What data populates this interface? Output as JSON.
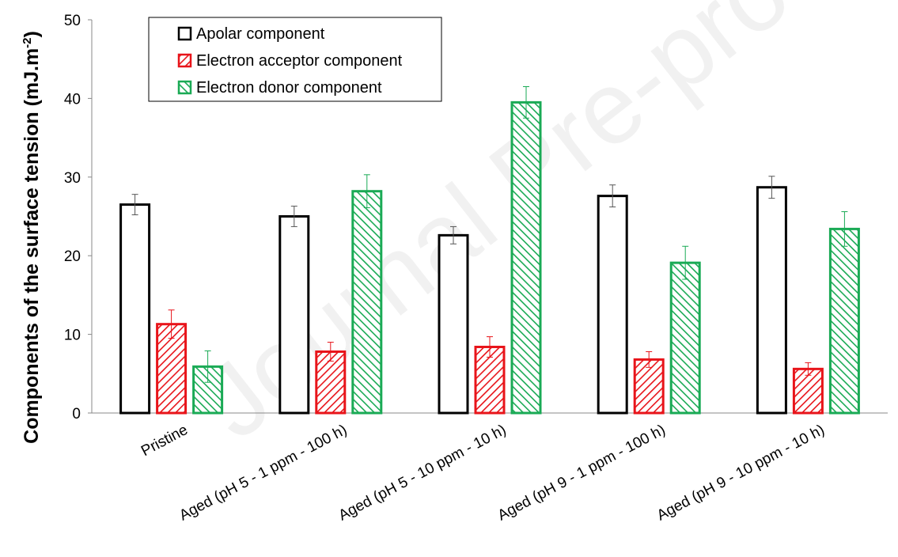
{
  "watermark": "Journal Pre-proof",
  "chart_data": {
    "type": "bar",
    "ylabel": "Components of the surface tension (mJ.m",
    "ylabel_sup": "-2",
    "ylabel_close": ")",
    "ylim": [
      0,
      50
    ],
    "yticks": [
      0,
      10,
      20,
      30,
      40,
      50
    ],
    "grid": false,
    "legend_position": "top-left",
    "categories": [
      "Pristine",
      "Aged (pH 5 - 1 ppm - 100 h)",
      "Aged (pH 5 - 10 ppm - 10 h)",
      "Aged (pH 9 - 1 ppm - 100 h)",
      "Aged (pH 9 - 10 ppm - 10 h)"
    ],
    "series": [
      {
        "name": "Apolar component",
        "color": "#000000",
        "pattern": "none",
        "values": [
          26.5,
          25.0,
          22.6,
          27.6,
          28.7
        ],
        "errors": [
          1.3,
          1.3,
          1.1,
          1.4,
          1.4
        ]
      },
      {
        "name": "Electron acceptor component",
        "color": "#e8141a",
        "pattern": "diagonal-down",
        "values": [
          11.3,
          7.8,
          8.4,
          6.8,
          5.6
        ],
        "errors": [
          1.8,
          1.2,
          1.3,
          1.0,
          0.8
        ]
      },
      {
        "name": "Electron donor component",
        "color": "#1aaa55",
        "pattern": "diagonal-up",
        "values": [
          5.9,
          28.2,
          39.5,
          19.1,
          23.4
        ],
        "errors": [
          2.0,
          2.1,
          2.0,
          2.1,
          2.2
        ]
      }
    ]
  }
}
